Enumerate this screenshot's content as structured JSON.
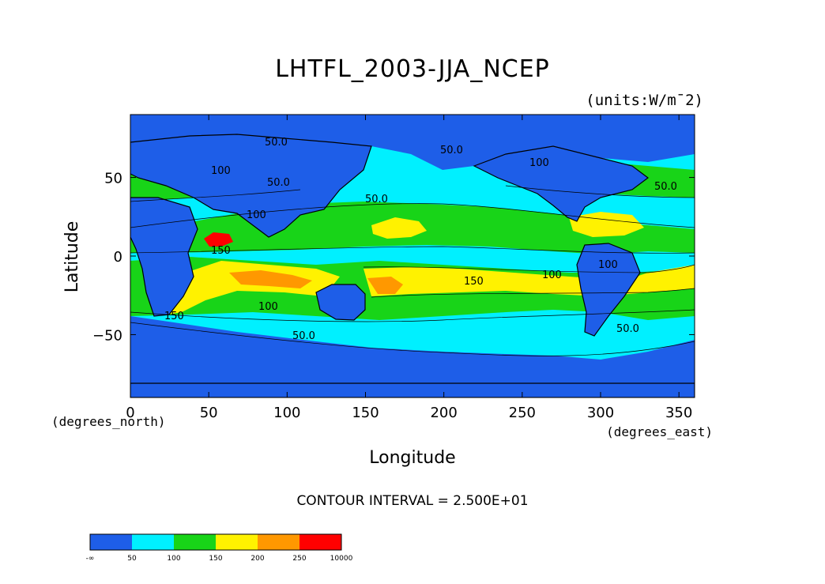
{
  "chart_data": {
    "type": "heatmap",
    "title": "LHTFL_2003-JJA_NCEP",
    "units": "(units:W/m¯2)",
    "xlabel": "Longitude",
    "ylabel": "Latitude",
    "x_units": "(degrees_east)",
    "y_units": "(degrees_north)",
    "footer": "CONTOUR INTERVAL = 2.500E+01",
    "xlim": [
      0,
      360
    ],
    "ylim": [
      -90,
      90
    ],
    "x_ticks": [
      0,
      50,
      100,
      150,
      200,
      250,
      300,
      350
    ],
    "y_ticks": [
      50,
      0,
      -50
    ],
    "contour_labels": [
      "50.0",
      "50.0",
      "50.0",
      "50.0",
      "50.0",
      "50.0",
      "50.0",
      "100",
      "100",
      "100",
      "100",
      "100",
      "100",
      "150",
      "150",
      "150"
    ],
    "colorbar": {
      "labels": [
        "-∞",
        "50",
        "100",
        "150",
        "200",
        "250",
        "10000"
      ],
      "colors": [
        "#1e5ee8",
        "#00f0ff",
        "#18d418",
        "#fff200",
        "#ff9800",
        "#ff0000"
      ]
    }
  }
}
